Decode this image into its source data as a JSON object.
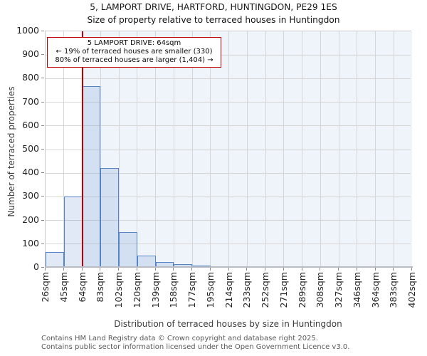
{
  "title": "5, LAMPORT DRIVE, HARTFORD, HUNTINGDON, PE29 1ES",
  "subtitle": "Size of property relative to terraced houses in Huntingdon",
  "annotation": {
    "line1": "5 LAMPORT DRIVE: 64sqm",
    "line2": "← 19% of terraced houses are smaller (330)",
    "line3": "80% of terraced houses are larger (1,404) →"
  },
  "footer": {
    "line1": "Contains HM Land Registry data © Crown copyright and database right 2025.",
    "line2": "Contains public sector information licensed under the Open Government Licence v3.0."
  },
  "chart_data": {
    "type": "bar",
    "title": "5, LAMPORT DRIVE, HARTFORD, HUNTINGDON, PE29 1ES",
    "subtitle": "Size of property relative to terraced houses in Huntingdon",
    "xlabel": "Distribution of terraced houses by size in Huntingdon",
    "ylabel": "Number of terraced properties",
    "bin_edges_sqm": [
      26,
      45,
      64,
      83,
      102,
      120,
      139,
      158,
      177,
      195,
      214,
      233,
      252,
      271,
      289,
      308,
      327,
      346,
      364,
      383,
      402
    ],
    "bin_labels": [
      "26sqm",
      "45sqm",
      "64sqm",
      "83sqm",
      "102sqm",
      "120sqm",
      "139sqm",
      "158sqm",
      "177sqm",
      "195sqm",
      "214sqm",
      "233sqm",
      "252sqm",
      "271sqm",
      "289sqm",
      "308sqm",
      "327sqm",
      "346sqm",
      "364sqm",
      "383sqm",
      "402sqm"
    ],
    "values": [
      60,
      295,
      762,
      416,
      145,
      45,
      17,
      8,
      3,
      0,
      0,
      0,
      0,
      0,
      0,
      0,
      0,
      0,
      0,
      0
    ],
    "ylim": [
      0,
      1000
    ],
    "yticks": [
      0,
      100,
      200,
      300,
      400,
      500,
      600,
      700,
      800,
      900,
      1000
    ],
    "grid": true,
    "legend": "none",
    "marker_value_sqm": 64,
    "marker_color": "#c00000",
    "shade_right_of_marker_color": "#eff4fb",
    "bar_fill": "rgba(85,133,199,0.18)",
    "bar_edge": "#5585c7",
    "plot_background_left_of_marker": "#ffffff"
  }
}
